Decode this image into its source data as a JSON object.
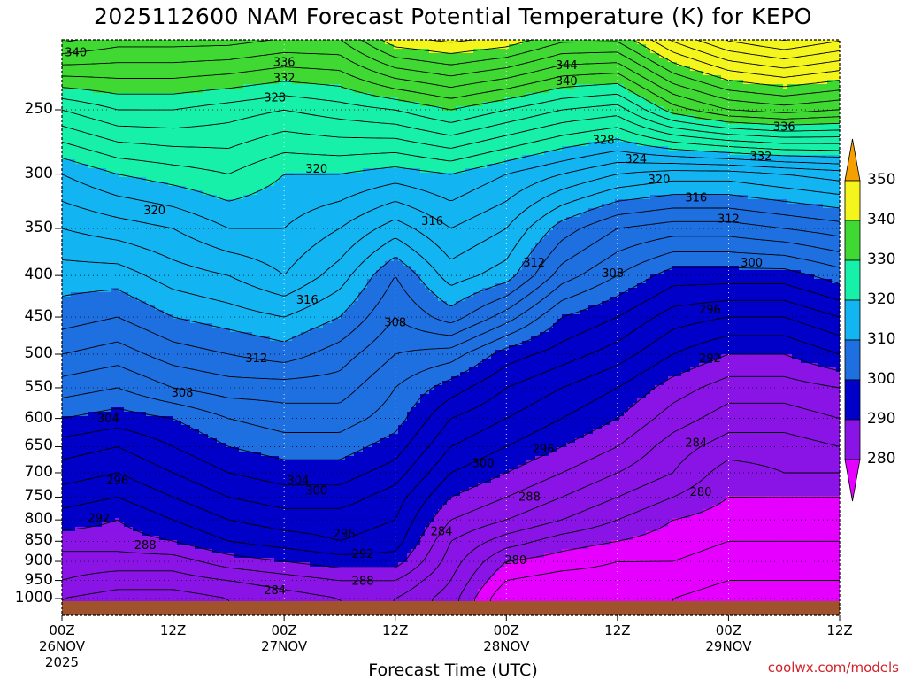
{
  "title": "2025112600 NAM Forecast Potential Temperature (K) for KEPO",
  "x_axis_title": "Forecast Time (UTC)",
  "credit": "coolwx.com/models",
  "chart_data": {
    "type": "heatmap",
    "title": "2025112600 NAM Forecast Potential Temperature (K) for KEPO",
    "xlabel": "Forecast Time (UTC)",
    "ylabel": "",
    "y_scale": "log-pressure (inverted)",
    "ylim": [
      1000,
      200
    ],
    "x_ticks": [
      {
        "label": "00Z",
        "sub": "26NOV",
        "sub2": "2025",
        "hour": 0
      },
      {
        "label": "12Z",
        "sub": "",
        "sub2": "",
        "hour": 12
      },
      {
        "label": "00Z",
        "sub": "27NOV",
        "sub2": "",
        "hour": 24
      },
      {
        "label": "12Z",
        "sub": "",
        "sub2": "",
        "hour": 36
      },
      {
        "label": "00Z",
        "sub": "28NOV",
        "sub2": "",
        "hour": 48
      },
      {
        "label": "12Z",
        "sub": "",
        "sub2": "",
        "hour": 60
      },
      {
        "label": "00Z",
        "sub": "29NOV",
        "sub2": "",
        "hour": 72
      },
      {
        "label": "12Z",
        "sub": "",
        "sub2": "",
        "hour": 84
      }
    ],
    "y_ticks": [
      250,
      300,
      350,
      400,
      450,
      500,
      550,
      600,
      650,
      700,
      750,
      800,
      850,
      900,
      950,
      1000
    ],
    "grid": true,
    "colorbar": {
      "levels": [
        280,
        290,
        300,
        310,
        320,
        330,
        340,
        350
      ],
      "colors": [
        "#8a2be2",
        "#7a0fd8",
        "#0000d0",
        "#1f78e8",
        "#10b8f0",
        "#1de8a0",
        "#2fd02f",
        "#9ee820",
        "#f8f820",
        "#ffa500",
        "#ee00ee"
      ],
      "band_colors": {
        "below_280": "#e600ff",
        "280_290": "#8a14e6",
        "290_300": "#0000c8",
        "300_310": "#1e6fe0",
        "310_320": "#12b4f2",
        "320_330": "#16f0a8",
        "330_340": "#40d832",
        "340_350": "#f5f51e",
        "above_350": "#f5a000"
      }
    },
    "hours": [
      0,
      6,
      12,
      18,
      24,
      30,
      36,
      42,
      48,
      54,
      60,
      66,
      72,
      78,
      84
    ],
    "pressures": [
      1000,
      950,
      900,
      850,
      800,
      750,
      700,
      650,
      600,
      550,
      500,
      450,
      400,
      350,
      300,
      250,
      200
    ],
    "theta_K": [
      [
        284,
        283,
        283,
        284,
        285,
        286,
        286,
        283,
        276,
        276,
        276,
        276,
        275,
        275,
        275
      ],
      [
        286,
        285,
        285,
        286,
        287,
        288,
        288,
        284,
        278,
        277,
        277,
        277,
        276,
        276,
        276
      ],
      [
        287,
        287,
        287,
        289,
        290,
        291,
        291,
        285,
        280,
        279,
        278,
        278,
        277,
        277,
        277
      ],
      [
        289,
        289,
        290,
        292,
        293,
        294,
        293,
        286,
        283,
        281,
        280,
        279,
        278,
        278,
        278
      ],
      [
        291,
        290,
        292,
        294,
        295,
        295,
        294,
        288,
        286,
        284,
        282,
        280,
        279,
        279,
        279
      ],
      [
        293,
        292,
        294,
        296,
        297,
        297,
        295,
        290,
        288,
        286,
        284,
        282,
        280,
        280,
        280
      ],
      [
        295,
        294,
        296,
        298,
        299,
        299,
        297,
        292,
        290,
        288,
        286,
        284,
        281,
        282,
        282
      ],
      [
        297,
        296,
        298,
        300,
        301,
        301,
        299,
        294,
        292,
        290,
        288,
        285,
        283,
        283,
        284
      ],
      [
        300,
        299,
        300,
        302,
        303,
        303,
        301,
        296,
        294,
        292,
        290,
        287,
        285,
        285,
        286
      ],
      [
        303,
        302,
        304,
        305,
        305,
        305,
        302,
        299,
        296,
        294,
        292,
        289,
        287,
        287,
        288
      ],
      [
        306,
        305,
        307,
        308,
        309,
        307,
        304,
        303,
        299,
        297,
        295,
        292,
        290,
        290,
        292
      ],
      [
        309,
        308,
        310,
        311,
        312,
        310,
        306,
        309,
        305,
        300,
        298,
        295,
        294,
        294,
        296
      ],
      [
        311,
        311,
        313,
        314,
        316,
        313,
        308,
        313,
        311,
        305,
        302,
        299,
        299,
        299,
        301
      ],
      [
        314,
        315,
        316,
        318,
        318,
        316,
        313,
        316,
        314,
        309,
        306,
        305,
        305,
        306,
        307
      ],
      [
        318,
        320,
        321,
        322,
        320,
        320,
        319,
        320,
        318,
        316,
        314,
        313,
        313,
        314,
        315
      ],
      [
        326,
        328,
        328,
        327,
        326,
        327,
        328,
        330,
        328,
        326,
        325,
        331,
        334,
        335,
        334
      ],
      [
        340,
        338,
        338,
        338,
        337,
        337,
        343,
        344,
        343,
        340,
        340,
        346,
        350,
        352,
        350
      ]
    ],
    "contour_labels": [
      {
        "text": "340",
        "hour": 1.5,
        "p": 212
      },
      {
        "text": "336",
        "hour": 24,
        "p": 218
      },
      {
        "text": "332",
        "hour": 24,
        "p": 228
      },
      {
        "text": "328",
        "hour": 23,
        "p": 241
      },
      {
        "text": "344",
        "hour": 54.5,
        "p": 220
      },
      {
        "text": "340",
        "hour": 54.5,
        "p": 230
      },
      {
        "text": "336",
        "hour": 78,
        "p": 262
      },
      {
        "text": "328",
        "hour": 58.5,
        "p": 272
      },
      {
        "text": "332",
        "hour": 75.5,
        "p": 285
      },
      {
        "text": "324",
        "hour": 62,
        "p": 287
      },
      {
        "text": "320",
        "hour": 64.5,
        "p": 304
      },
      {
        "text": "316",
        "hour": 68.5,
        "p": 320
      },
      {
        "text": "320",
        "hour": 27.5,
        "p": 295
      },
      {
        "text": "320",
        "hour": 10,
        "p": 332
      },
      {
        "text": "316",
        "hour": 40,
        "p": 342
      },
      {
        "text": "312",
        "hour": 72,
        "p": 340
      },
      {
        "text": "312",
        "hour": 51,
        "p": 385
      },
      {
        "text": "308",
        "hour": 59.5,
        "p": 397
      },
      {
        "text": "300",
        "hour": 74.5,
        "p": 385
      },
      {
        "text": "316",
        "hour": 26.5,
        "p": 428
      },
      {
        "text": "296",
        "hour": 70,
        "p": 440
      },
      {
        "text": "308",
        "hour": 36,
        "p": 456
      },
      {
        "text": "312",
        "hour": 21,
        "p": 505
      },
      {
        "text": "292",
        "hour": 70,
        "p": 505
      },
      {
        "text": "308",
        "hour": 13,
        "p": 557
      },
      {
        "text": "304",
        "hour": 5,
        "p": 599
      },
      {
        "text": "284",
        "hour": 68.5,
        "p": 642
      },
      {
        "text": "296",
        "hour": 52,
        "p": 653
      },
      {
        "text": "300",
        "hour": 45.5,
        "p": 680
      },
      {
        "text": "296",
        "hour": 6,
        "p": 714
      },
      {
        "text": "304",
        "hour": 25.5,
        "p": 714
      },
      {
        "text": "300",
        "hour": 27.5,
        "p": 735
      },
      {
        "text": "288",
        "hour": 50.5,
        "p": 748
      },
      {
        "text": "280",
        "hour": 69,
        "p": 738
      },
      {
        "text": "292",
        "hour": 4,
        "p": 795
      },
      {
        "text": "284",
        "hour": 41,
        "p": 825
      },
      {
        "text": "296",
        "hour": 30.5,
        "p": 830
      },
      {
        "text": "288",
        "hour": 9,
        "p": 858
      },
      {
        "text": "292",
        "hour": 32.5,
        "p": 880
      },
      {
        "text": "280",
        "hour": 49,
        "p": 895
      },
      {
        "text": "288",
        "hour": 32.5,
        "p": 950
      },
      {
        "text": "284",
        "hour": 23,
        "p": 975
      }
    ]
  }
}
